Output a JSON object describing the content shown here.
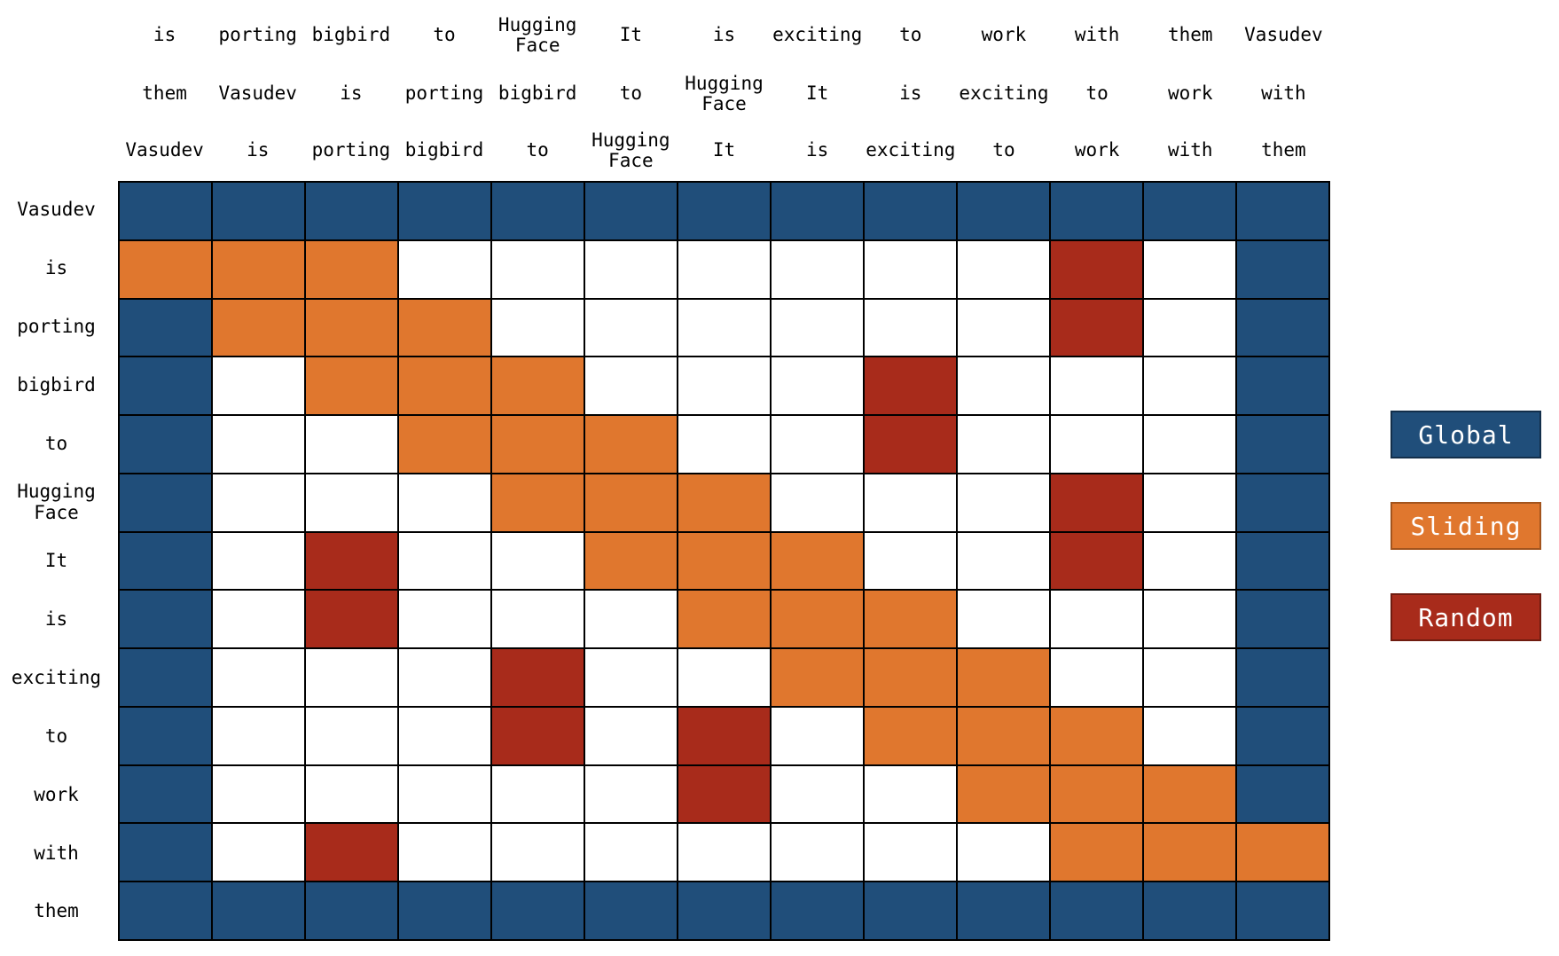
{
  "figure": {
    "background": "#ffffff"
  },
  "colors": {
    "global": "#204E7A",
    "sliding": "#E0772E",
    "random": "#A82B1B",
    "empty": "#FFFFFF",
    "gridline": "#000000",
    "text": "#000000"
  },
  "legend": {
    "items": [
      {
        "label": "Global",
        "color": "#204E7A",
        "border": "#132F4B",
        "text_color": "#FFFFFF"
      },
      {
        "label": "Sliding",
        "color": "#E0772E",
        "border": "#A3541D",
        "text_color": "#FFFFFF"
      },
      {
        "label": "Random",
        "color": "#A82B1B",
        "border": "#6F1C10",
        "text_color": "#FFFFFF"
      }
    ]
  },
  "chart_data": {
    "type": "heatmap",
    "tokens": [
      "Vasudev",
      "is",
      "porting",
      "bigbird",
      "to",
      "Hugging Face",
      "It",
      "is",
      "exciting",
      "to",
      "work",
      "with",
      "them"
    ],
    "column_header_rows": [
      [
        "is",
        "porting",
        "bigbird",
        "to",
        "Hugging Face",
        "It",
        "is",
        "exciting",
        "to",
        "work",
        "with",
        "them",
        "Vasudev"
      ],
      [
        "them",
        "Vasudev",
        "is",
        "porting",
        "bigbird",
        "to",
        "Hugging Face",
        "It",
        "is",
        "exciting",
        "to",
        "work",
        "with"
      ],
      [
        "Vasudev",
        "is",
        "porting",
        "bigbird",
        "to",
        "Hugging Face",
        "It",
        "is",
        "exciting",
        "to",
        "work",
        "with",
        "them"
      ]
    ],
    "row_labels": [
      "Vasudev",
      "is",
      "porting",
      "bigbird",
      "to",
      "Hugging Face",
      "It",
      "is",
      "exciting",
      "to",
      "work",
      "with",
      "them"
    ],
    "cell_legend": {
      "G": "Global",
      "S": "Sliding",
      "R": "Random",
      "W": "none"
    },
    "matrix": [
      [
        "G",
        "G",
        "G",
        "G",
        "G",
        "G",
        "G",
        "G",
        "G",
        "G",
        "G",
        "G",
        "G"
      ],
      [
        "S",
        "S",
        "S",
        "W",
        "W",
        "W",
        "W",
        "W",
        "W",
        "W",
        "R",
        "W",
        "G"
      ],
      [
        "G",
        "S",
        "S",
        "S",
        "W",
        "W",
        "W",
        "W",
        "W",
        "W",
        "R",
        "W",
        "G"
      ],
      [
        "G",
        "W",
        "S",
        "S",
        "S",
        "W",
        "W",
        "W",
        "R",
        "W",
        "W",
        "W",
        "G"
      ],
      [
        "G",
        "W",
        "W",
        "S",
        "S",
        "S",
        "W",
        "W",
        "R",
        "W",
        "W",
        "W",
        "G"
      ],
      [
        "G",
        "W",
        "W",
        "W",
        "S",
        "S",
        "S",
        "W",
        "W",
        "W",
        "R",
        "W",
        "G"
      ],
      [
        "G",
        "W",
        "R",
        "W",
        "W",
        "S",
        "S",
        "S",
        "W",
        "W",
        "R",
        "W",
        "G"
      ],
      [
        "G",
        "W",
        "R",
        "W",
        "W",
        "W",
        "S",
        "S",
        "S",
        "W",
        "W",
        "W",
        "G"
      ],
      [
        "G",
        "W",
        "W",
        "W",
        "R",
        "W",
        "W",
        "S",
        "S",
        "S",
        "W",
        "W",
        "G"
      ],
      [
        "G",
        "W",
        "W",
        "W",
        "R",
        "W",
        "R",
        "W",
        "S",
        "S",
        "S",
        "W",
        "G"
      ],
      [
        "G",
        "W",
        "W",
        "W",
        "W",
        "W",
        "R",
        "W",
        "W",
        "S",
        "S",
        "S",
        "G"
      ],
      [
        "G",
        "W",
        "R",
        "W",
        "W",
        "W",
        "W",
        "W",
        "W",
        "W",
        "S",
        "S",
        "S"
      ],
      [
        "G",
        "G",
        "G",
        "G",
        "G",
        "G",
        "G",
        "G",
        "G",
        "G",
        "G",
        "G",
        "G"
      ]
    ]
  }
}
